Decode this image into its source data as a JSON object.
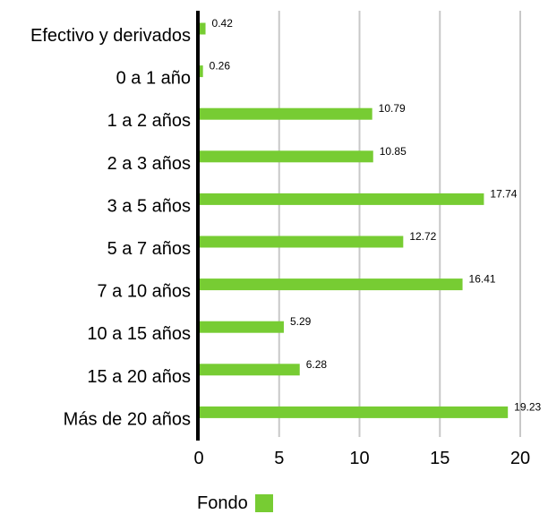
{
  "chart_data": {
    "type": "bar",
    "orientation": "horizontal",
    "categories": [
      "Efectivo y derivados",
      "0 a 1 año",
      "1 a 2 años",
      "2 a 3 años",
      "3 a 5 años",
      "5 a 7 años",
      "7 a 10 años",
      "10 a 15 años",
      "15 a 20 años",
      "Más de 20 años"
    ],
    "series": [
      {
        "name": "Fondo",
        "values": [
          0.42,
          0.26,
          10.79,
          10.85,
          17.74,
          12.72,
          16.41,
          5.29,
          6.28,
          19.23
        ],
        "value_labels": [
          "0.42",
          "0.26",
          "10.79",
          "10.85",
          "17.74",
          "12.72",
          "16.41",
          "5.29",
          "6.28",
          "19.23"
        ],
        "color": "#77cc33"
      }
    ],
    "xlim": [
      0,
      20
    ],
    "xticks": [
      0,
      5,
      10,
      15,
      20
    ],
    "xtick_labels": [
      "0",
      "5",
      "10",
      "15",
      "20"
    ],
    "grid": "vertical",
    "legend_position": "bottom-left"
  },
  "legend": {
    "label": "Fondo",
    "color": "#77cc33"
  },
  "colors": {
    "bar": "#77cc33",
    "grid": "#c8c8c8",
    "axis": "#000000"
  }
}
